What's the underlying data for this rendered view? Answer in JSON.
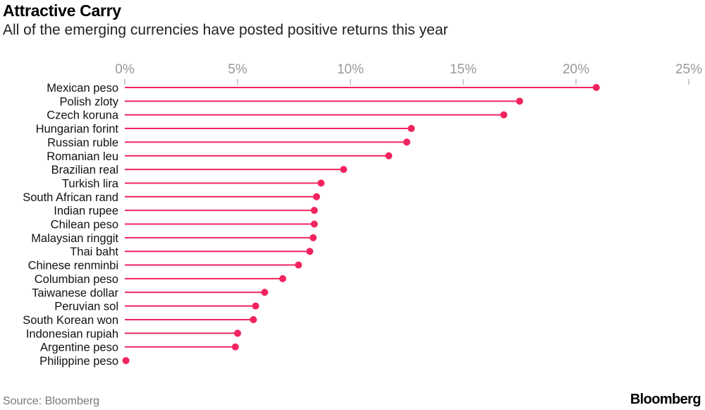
{
  "header": {
    "title": "Attractive Carry",
    "subtitle": "All of the emerging currencies have posted positive returns this year"
  },
  "footer": {
    "source": "Source: Bloomberg",
    "logo": "Bloomberg"
  },
  "colors": {
    "accent": "#f2245f",
    "tick": "#999999"
  },
  "chart_data": {
    "type": "lollipop-horizontal-bar",
    "title": "Attractive Carry",
    "subtitle": "All of the emerging currencies have posted positive returns this year",
    "xlabel": "",
    "ylabel": "",
    "xlim": [
      0,
      25
    ],
    "xticks": [
      0,
      5,
      10,
      15,
      20,
      25
    ],
    "xtick_labels": [
      "0%",
      "5%",
      "10%",
      "15%",
      "20%",
      "25%"
    ],
    "x_axis_position": "top",
    "grid": false,
    "categories": [
      "Mexican peso",
      "Polish zloty",
      "Czech koruna",
      "Hungarian forint",
      "Russian ruble",
      "Romanian leu",
      "Brazilian real",
      "Turkish lira",
      "South African rand",
      "Indian rupee",
      "Chilean peso",
      "Malaysian ringgit",
      "Thai baht",
      "Chinese renminbi",
      "Columbian peso",
      "Taiwanese dollar",
      "Peruvian sol",
      "South Korean won",
      "Indonesian rupiah",
      "Argentine peso",
      "Philippine peso"
    ],
    "values": [
      20.9,
      17.5,
      16.8,
      12.7,
      12.5,
      11.7,
      9.7,
      8.7,
      8.5,
      8.4,
      8.4,
      8.35,
      8.2,
      7.7,
      7.0,
      6.2,
      5.8,
      5.7,
      5.0,
      4.9,
      0.05
    ]
  }
}
